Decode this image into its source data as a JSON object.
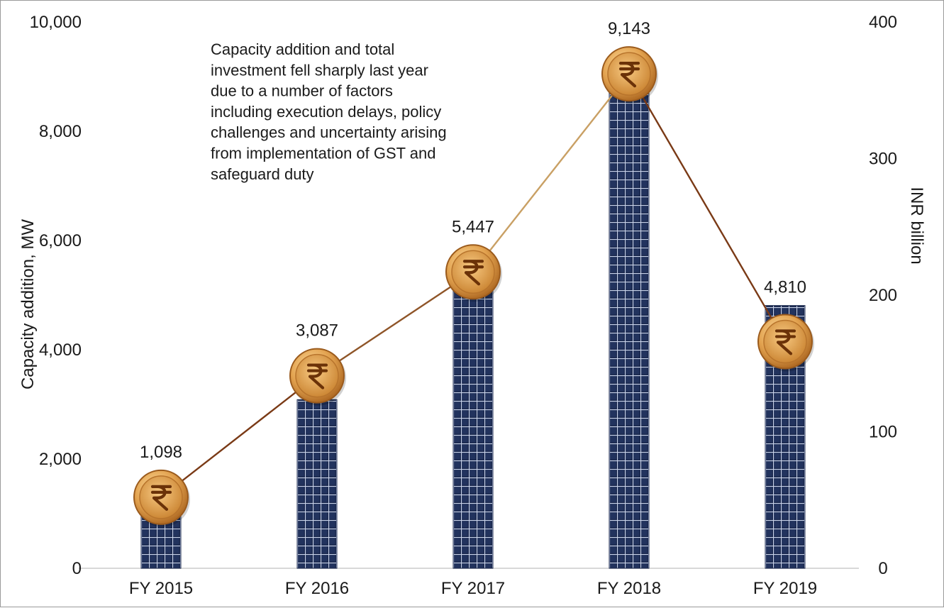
{
  "chart_data": {
    "type": "bar",
    "categories": [
      "FY 2015",
      "FY 2016",
      "FY 2017",
      "FY 2018",
      "FY 2019"
    ],
    "series": [
      {
        "name": "",
        "axis": "left",
        "type": "bar",
        "values": [
          1098,
          3087,
          5447,
          9143,
          4810
        ]
      },
      {
        "name": "",
        "axis": "right",
        "type": "line",
        "values": [
          52,
          141,
          217,
          362,
          166
        ]
      }
    ],
    "data_labels": [
      "1,098",
      "3,087",
      "5,447",
      "9,143",
      "4,810"
    ],
    "ylabel": "Capacity addition, MW",
    "y2label": "INR billion",
    "ylim": [
      0,
      10000
    ],
    "y2lim": [
      0,
      400
    ],
    "yticks": [
      "0",
      "2,000",
      "4,000",
      "6,000",
      "8,000",
      "10,000"
    ],
    "y2ticks": [
      "0",
      "100",
      "200",
      "300",
      "400"
    ],
    "marker_icon": "rupee-coin-icon",
    "annotation": [
      "Capacity addition and total",
      "investment fell sharply last year",
      "due to a number of factors",
      "including execution delays, policy",
      "challenges and uncertainty arising",
      "from implementation of GST and",
      "safeguard duty"
    ],
    "colors": {
      "bar": "#1c2a4e",
      "bar_grid": "#c9d3ea",
      "line_rise": "#7a3a16",
      "line_peak": "#d9b878",
      "coin": "#d99a3e",
      "coin_symbol": "#6b3208"
    }
  }
}
